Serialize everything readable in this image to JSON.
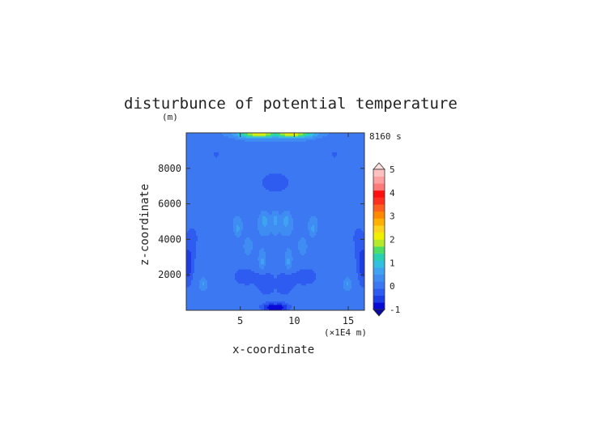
{
  "chart_data": {
    "type": "heatmap",
    "title": "disturbunce of potential temperature",
    "ylabel": "z-coordinate",
    "xlabel": "x-coordinate",
    "y_unit": "(m)",
    "x_unit": "(×1E4 m)",
    "time_label": "8160 s",
    "xlim": [
      0,
      16.5
    ],
    "ylim": [
      0,
      10000
    ],
    "x_ticks": [
      5,
      10,
      15
    ],
    "y_ticks": [
      2000,
      4000,
      6000,
      8000
    ],
    "colorbar": {
      "levels": [
        -1,
        0,
        1,
        2,
        3,
        4,
        5
      ],
      "tick_labels": [
        "-1",
        "0",
        "1",
        "2",
        "3",
        "4",
        "5"
      ],
      "colors": [
        "#0a0ad6",
        "#1c3ce4",
        "#2f5cf0",
        "#3c78f2",
        "#3f8cf3",
        "#3fa2f2",
        "#32bfe0",
        "#28d2b0",
        "#4ede66",
        "#b5ea2a",
        "#f0f000",
        "#ffd21e",
        "#ffb000",
        "#ff8a00",
        "#ff6020",
        "#ff3020",
        "#ff1010",
        "#ff7a7a",
        "#ffa0a0",
        "#ffc0c0"
      ]
    },
    "field_note": "Symmetric potential-temperature disturbance field; background ~0.2, weak negative lobes near center-bottom and upper corners, small positive cells (~0.8) at mid-levels, maximum near top (~2)."
  }
}
